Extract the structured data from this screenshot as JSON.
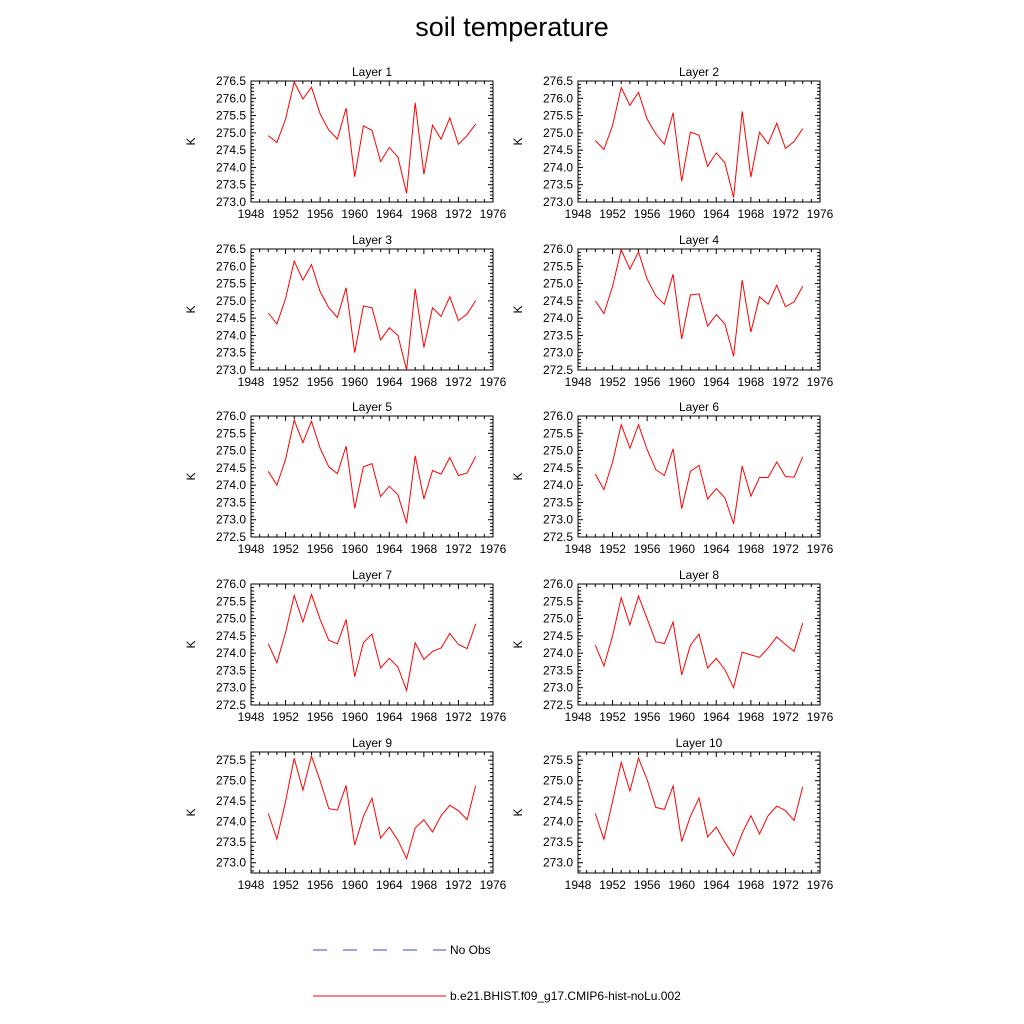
{
  "title": "soil temperature",
  "colors": {
    "model": "#ff0000",
    "obs": "#3b45c8",
    "axis": "#000000"
  },
  "legend": {
    "obs_label": "No Obs",
    "model_label": "b.e21.BHIST.f09_g17.CMIP6-hist-noLu.002"
  },
  "chart_data": [
    {
      "type": "line",
      "title": "Layer 1",
      "ylabel": "K",
      "xlim": [
        1948,
        1976
      ],
      "xticks": [
        "1948",
        "1952",
        "1956",
        "1960",
        "1964",
        "1968",
        "1972",
        "1976"
      ],
      "ylim": [
        273.0,
        276.5
      ],
      "yticks": [
        "273.0",
        "273.5",
        "274.0",
        "274.5",
        "275.0",
        "275.5",
        "276.0",
        "276.5"
      ],
      "x": [
        1950,
        1951,
        1952,
        1953,
        1954,
        1955,
        1956,
        1957,
        1958,
        1959,
        1960,
        1961,
        1962,
        1963,
        1964,
        1965,
        1966,
        1967,
        1968,
        1969,
        1970,
        1971,
        1972,
        1973,
        1974
      ],
      "series": [
        {
          "name": "b.e21.BHIST.f09_g17.CMIP6-hist-noLu.002",
          "values": [
            274.92,
            274.72,
            275.4,
            276.47,
            275.98,
            276.32,
            275.55,
            275.08,
            274.82,
            275.72,
            273.73,
            275.2,
            275.07,
            274.17,
            274.58,
            274.3,
            273.25,
            275.87,
            273.8,
            275.22,
            274.82,
            275.43,
            274.67,
            274.92,
            275.26
          ]
        }
      ]
    },
    {
      "type": "line",
      "title": "Layer 2",
      "ylabel": "K",
      "xlim": [
        1948,
        1976
      ],
      "xticks": [
        "1948",
        "1952",
        "1956",
        "1960",
        "1964",
        "1968",
        "1972",
        "1976"
      ],
      "ylim": [
        273.0,
        276.5
      ],
      "yticks": [
        "273.0",
        "273.5",
        "274.0",
        "274.5",
        "275.0",
        "275.5",
        "276.0",
        "276.5"
      ],
      "x": [
        1950,
        1951,
        1952,
        1953,
        1954,
        1955,
        1956,
        1957,
        1958,
        1959,
        1960,
        1961,
        1962,
        1963,
        1964,
        1965,
        1966,
        1967,
        1968,
        1969,
        1970,
        1971,
        1972,
        1973,
        1974
      ],
      "series": [
        {
          "name": "b.e21.BHIST.f09_g17.CMIP6-hist-noLu.002",
          "values": [
            274.78,
            274.52,
            275.22,
            276.31,
            275.8,
            276.17,
            275.4,
            274.97,
            274.67,
            275.58,
            273.6,
            275.02,
            274.93,
            274.03,
            274.42,
            274.13,
            273.13,
            275.62,
            273.72,
            275.02,
            274.68,
            275.28,
            274.55,
            274.75,
            275.12
          ]
        }
      ]
    },
    {
      "type": "line",
      "title": "Layer 3",
      "ylabel": "K",
      "xlim": [
        1948,
        1976
      ],
      "xticks": [
        "1948",
        "1952",
        "1956",
        "1960",
        "1964",
        "1968",
        "1972",
        "1976"
      ],
      "ylim": [
        273.0,
        276.5
      ],
      "yticks": [
        "273.0",
        "273.5",
        "274.0",
        "274.5",
        "275.0",
        "275.5",
        "276.0",
        "276.5"
      ],
      "x": [
        1950,
        1951,
        1952,
        1953,
        1954,
        1955,
        1956,
        1957,
        1958,
        1959,
        1960,
        1961,
        1962,
        1963,
        1964,
        1965,
        1966,
        1967,
        1968,
        1969,
        1970,
        1971,
        1972,
        1973,
        1974
      ],
      "series": [
        {
          "name": "b.e21.BHIST.f09_g17.CMIP6-hist-noLu.002",
          "values": [
            274.65,
            274.33,
            275.07,
            276.15,
            275.6,
            276.05,
            275.27,
            274.8,
            274.52,
            275.38,
            273.5,
            274.85,
            274.8,
            273.87,
            274.22,
            274.0,
            273.0,
            275.35,
            273.65,
            274.8,
            274.55,
            275.12,
            274.43,
            274.62,
            275.01
          ]
        }
      ]
    },
    {
      "type": "line",
      "title": "Layer 4",
      "ylabel": "K",
      "xlim": [
        1948,
        1976
      ],
      "xticks": [
        "1948",
        "1952",
        "1956",
        "1960",
        "1964",
        "1968",
        "1972",
        "1976"
      ],
      "ylim": [
        272.5,
        276.0
      ],
      "yticks": [
        "272.5",
        "273.0",
        "273.5",
        "274.0",
        "274.5",
        "275.0",
        "275.5",
        "276.0"
      ],
      "x": [
        1950,
        1951,
        1952,
        1953,
        1954,
        1955,
        1956,
        1957,
        1958,
        1959,
        1960,
        1961,
        1962,
        1963,
        1964,
        1965,
        1966,
        1967,
        1968,
        1969,
        1970,
        1971,
        1972,
        1973,
        1974
      ],
      "series": [
        {
          "name": "b.e21.BHIST.f09_g17.CMIP6-hist-noLu.002",
          "values": [
            274.5,
            274.13,
            274.92,
            275.98,
            275.42,
            275.92,
            275.13,
            274.65,
            274.4,
            275.27,
            273.4,
            274.67,
            274.7,
            273.77,
            274.1,
            273.83,
            272.9,
            275.1,
            273.6,
            274.62,
            274.4,
            274.95,
            274.33,
            274.47,
            274.92
          ]
        }
      ]
    },
    {
      "type": "line",
      "title": "Layer 5",
      "ylabel": "K",
      "xlim": [
        1948,
        1976
      ],
      "xticks": [
        "1948",
        "1952",
        "1956",
        "1960",
        "1964",
        "1968",
        "1972",
        "1976"
      ],
      "ylim": [
        272.5,
        276.0
      ],
      "yticks": [
        "272.5",
        "273.0",
        "273.5",
        "274.0",
        "274.5",
        "275.0",
        "275.5",
        "276.0"
      ],
      "x": [
        1950,
        1951,
        1952,
        1953,
        1954,
        1955,
        1956,
        1957,
        1958,
        1959,
        1960,
        1961,
        1962,
        1963,
        1964,
        1965,
        1966,
        1967,
        1968,
        1969,
        1970,
        1971,
        1972,
        1973,
        1974
      ],
      "series": [
        {
          "name": "b.e21.BHIST.f09_g17.CMIP6-hist-noLu.002",
          "values": [
            274.4,
            274.0,
            274.75,
            275.88,
            275.23,
            275.85,
            275.07,
            274.53,
            274.33,
            275.13,
            273.33,
            274.53,
            274.62,
            273.67,
            273.97,
            273.72,
            272.9,
            274.85,
            273.6,
            274.42,
            274.32,
            274.8,
            274.28,
            274.35,
            274.83
          ]
        }
      ]
    },
    {
      "type": "line",
      "title": "Layer 6",
      "ylabel": "K",
      "xlim": [
        1948,
        1976
      ],
      "xticks": [
        "1948",
        "1952",
        "1956",
        "1960",
        "1964",
        "1968",
        "1972",
        "1976"
      ],
      "ylim": [
        272.5,
        276.0
      ],
      "yticks": [
        "272.5",
        "273.0",
        "273.5",
        "274.0",
        "274.5",
        "275.0",
        "275.5",
        "276.0"
      ],
      "x": [
        1950,
        1951,
        1952,
        1953,
        1954,
        1955,
        1956,
        1957,
        1958,
        1959,
        1960,
        1961,
        1962,
        1963,
        1964,
        1965,
        1966,
        1967,
        1968,
        1969,
        1970,
        1971,
        1972,
        1973,
        1974
      ],
      "series": [
        {
          "name": "b.e21.BHIST.f09_g17.CMIP6-hist-noLu.002",
          "values": [
            274.32,
            273.87,
            274.67,
            275.75,
            275.07,
            275.75,
            275.03,
            274.45,
            274.28,
            275.05,
            273.32,
            274.4,
            274.57,
            273.6,
            273.9,
            273.63,
            272.88,
            274.55,
            273.68,
            274.22,
            274.22,
            274.67,
            274.25,
            274.23,
            274.82
          ]
        }
      ]
    },
    {
      "type": "line",
      "title": "Layer 7",
      "ylabel": "K",
      "xlim": [
        1948,
        1976
      ],
      "xticks": [
        "1948",
        "1952",
        "1956",
        "1960",
        "1964",
        "1968",
        "1972",
        "1976"
      ],
      "ylim": [
        272.5,
        276.0
      ],
      "yticks": [
        "272.5",
        "273.0",
        "273.5",
        "274.0",
        "274.5",
        "275.0",
        "275.5",
        "276.0"
      ],
      "x": [
        1950,
        1951,
        1952,
        1953,
        1954,
        1955,
        1956,
        1957,
        1958,
        1959,
        1960,
        1961,
        1962,
        1963,
        1964,
        1965,
        1966,
        1967,
        1968,
        1969,
        1970,
        1971,
        1972,
        1973,
        1974
      ],
      "series": [
        {
          "name": "b.e21.BHIST.f09_g17.CMIP6-hist-noLu.002",
          "values": [
            274.27,
            273.72,
            274.6,
            275.67,
            274.9,
            275.7,
            274.98,
            274.37,
            274.27,
            274.97,
            273.32,
            274.3,
            274.55,
            273.57,
            273.85,
            273.6,
            272.92,
            274.3,
            273.82,
            274.05,
            274.15,
            274.57,
            274.25,
            274.13,
            274.85
          ]
        }
      ]
    },
    {
      "type": "line",
      "title": "Layer 8",
      "ylabel": "K",
      "xlim": [
        1948,
        1976
      ],
      "xticks": [
        "1948",
        "1952",
        "1956",
        "1960",
        "1964",
        "1968",
        "1972",
        "1976"
      ],
      "ylim": [
        272.5,
        276.0
      ],
      "yticks": [
        "272.5",
        "273.0",
        "273.5",
        "274.0",
        "274.5",
        "275.0",
        "275.5",
        "276.0"
      ],
      "x": [
        1950,
        1951,
        1952,
        1953,
        1954,
        1955,
        1956,
        1957,
        1958,
        1959,
        1960,
        1961,
        1962,
        1963,
        1964,
        1965,
        1966,
        1967,
        1968,
        1969,
        1970,
        1971,
        1972,
        1973,
        1974
      ],
      "series": [
        {
          "name": "b.e21.BHIST.f09_g17.CMIP6-hist-noLu.002",
          "values": [
            274.23,
            273.63,
            274.5,
            275.6,
            274.82,
            275.65,
            275.0,
            274.33,
            274.28,
            274.9,
            273.37,
            274.23,
            274.55,
            273.57,
            273.85,
            273.52,
            273.0,
            274.03,
            273.95,
            273.88,
            274.15,
            274.47,
            274.25,
            274.05,
            274.87
          ]
        }
      ]
    },
    {
      "type": "line",
      "title": "Layer 9",
      "ylabel": "K",
      "xlim": [
        1948,
        1976
      ],
      "xticks": [
        "1948",
        "1952",
        "1956",
        "1960",
        "1964",
        "1968",
        "1972",
        "1976"
      ],
      "ylim": [
        272.75,
        275.7
      ],
      "yticks": [
        "273.0",
        "273.5",
        "274.0",
        "274.5",
        "275.0",
        "275.5"
      ],
      "x": [
        1950,
        1951,
        1952,
        1953,
        1954,
        1955,
        1956,
        1957,
        1958,
        1959,
        1960,
        1961,
        1962,
        1963,
        1964,
        1965,
        1966,
        1967,
        1968,
        1969,
        1970,
        1971,
        1972,
        1973,
        1974
      ],
      "series": [
        {
          "name": "b.e21.BHIST.f09_g17.CMIP6-hist-noLu.002",
          "values": [
            274.2,
            273.58,
            274.5,
            275.55,
            274.77,
            275.6,
            275.0,
            274.32,
            274.28,
            274.88,
            273.43,
            274.13,
            274.57,
            273.6,
            273.87,
            273.55,
            273.1,
            273.85,
            274.05,
            273.75,
            274.15,
            274.4,
            274.27,
            274.05,
            274.88
          ]
        }
      ]
    },
    {
      "type": "line",
      "title": "Layer 10",
      "ylabel": "K",
      "xlim": [
        1948,
        1976
      ],
      "xticks": [
        "1948",
        "1952",
        "1956",
        "1960",
        "1964",
        "1968",
        "1972",
        "1976"
      ],
      "ylim": [
        272.75,
        275.7
      ],
      "yticks": [
        "273.0",
        "273.5",
        "274.0",
        "274.5",
        "275.0",
        "275.5"
      ],
      "x": [
        1950,
        1951,
        1952,
        1953,
        1954,
        1955,
        1956,
        1957,
        1958,
        1959,
        1960,
        1961,
        1962,
        1963,
        1964,
        1965,
        1966,
        1967,
        1968,
        1969,
        1970,
        1971,
        1972,
        1973,
        1974
      ],
      "series": [
        {
          "name": "b.e21.BHIST.f09_g17.CMIP6-hist-noLu.002",
          "values": [
            274.2,
            273.57,
            274.5,
            275.45,
            274.75,
            275.55,
            275.03,
            274.35,
            274.3,
            274.87,
            273.52,
            274.13,
            274.58,
            273.63,
            273.87,
            273.5,
            273.17,
            273.72,
            274.15,
            273.7,
            274.15,
            274.38,
            274.27,
            274.03,
            274.85
          ]
        }
      ]
    }
  ]
}
